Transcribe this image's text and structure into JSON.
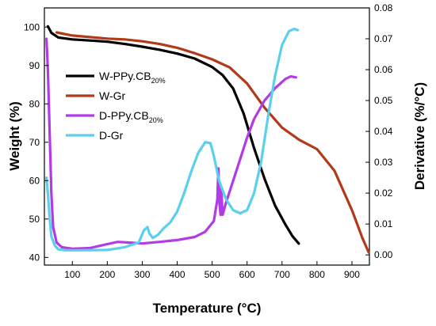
{
  "chart_data": {
    "type": "line",
    "xlabel": "Temperature (°C)",
    "ylabel_left": "Weight (%)",
    "ylabel_right": "Derivative (%/°C)",
    "xlim": [
      20,
      950
    ],
    "ylim_left": [
      38,
      105
    ],
    "ylim_right": [
      -0.0033,
      0.08
    ],
    "x_ticks": [
      "100",
      "200",
      "300",
      "400",
      "500",
      "600",
      "700",
      "800",
      "900"
    ],
    "y_left_ticks": [
      "40",
      "50",
      "60",
      "70",
      "80",
      "90",
      "100"
    ],
    "y_right_ticks": [
      "0.00",
      "0.01",
      "0.02",
      "0.03",
      "0.04",
      "0.05",
      "0.06",
      "0.07",
      "0.08"
    ],
    "grid": false,
    "legend_position": "upper-left",
    "series": [
      {
        "name": "W-PPy.CB",
        "name_sub": "20%",
        "axis": "left",
        "color": "#000000",
        "points": [
          [
            30,
            100.2
          ],
          [
            40,
            98.5
          ],
          [
            60,
            97.3
          ],
          [
            100,
            96.8
          ],
          [
            150,
            96.5
          ],
          [
            200,
            96.2
          ],
          [
            250,
            95.6
          ],
          [
            300,
            94.9
          ],
          [
            350,
            94.1
          ],
          [
            400,
            93.1
          ],
          [
            450,
            91.8
          ],
          [
            500,
            89.6
          ],
          [
            530,
            87.5
          ],
          [
            560,
            84.0
          ],
          [
            590,
            77.5
          ],
          [
            620,
            68.5
          ],
          [
            650,
            60.5
          ],
          [
            680,
            53.5
          ],
          [
            710,
            48.5
          ],
          [
            730,
            45.5
          ],
          [
            748,
            43.6
          ]
        ]
      },
      {
        "name": "W-Gr",
        "axis": "left",
        "color": "#b03a1a",
        "points": [
          [
            55,
            98.6
          ],
          [
            100,
            97.8
          ],
          [
            150,
            97.4
          ],
          [
            200,
            97.0
          ],
          [
            250,
            96.8
          ],
          [
            300,
            96.3
          ],
          [
            350,
            95.6
          ],
          [
            400,
            94.6
          ],
          [
            450,
            93.2
          ],
          [
            500,
            91.6
          ],
          [
            550,
            89.5
          ],
          [
            600,
            85.3
          ],
          [
            650,
            79.0
          ],
          [
            700,
            73.8
          ],
          [
            750,
            70.6
          ],
          [
            800,
            68.2
          ],
          [
            850,
            62.6
          ],
          [
            900,
            52.3
          ],
          [
            930,
            45.0
          ],
          [
            948,
            41.3
          ]
        ]
      },
      {
        "name": "D-PPy.CB",
        "name_sub": "20%",
        "axis": "right",
        "color": "#b23be6",
        "points": [
          [
            26,
            0.07
          ],
          [
            30,
            0.06
          ],
          [
            35,
            0.04
          ],
          [
            40,
            0.02
          ],
          [
            45,
            0.009
          ],
          [
            55,
            0.004
          ],
          [
            70,
            0.0025
          ],
          [
            100,
            0.002
          ],
          [
            150,
            0.0022
          ],
          [
            200,
            0.0035
          ],
          [
            230,
            0.0042
          ],
          [
            260,
            0.004
          ],
          [
            300,
            0.0037
          ],
          [
            350,
            0.0042
          ],
          [
            400,
            0.0048
          ],
          [
            450,
            0.0058
          ],
          [
            480,
            0.0075
          ],
          [
            505,
            0.011
          ],
          [
            515,
            0.018
          ],
          [
            518,
            0.028
          ],
          [
            520,
            0.018
          ],
          [
            524,
            0.013
          ],
          [
            526,
            0.0215
          ],
          [
            530,
            0.013
          ],
          [
            540,
            0.017
          ],
          [
            560,
            0.024
          ],
          [
            580,
            0.031
          ],
          [
            600,
            0.038
          ],
          [
            620,
            0.044
          ],
          [
            650,
            0.05
          ],
          [
            680,
            0.054
          ],
          [
            710,
            0.057
          ],
          [
            725,
            0.0578
          ],
          [
            740,
            0.0575
          ]
        ]
      },
      {
        "name": "D-Gr",
        "axis": "right",
        "color": "#5ad0ec",
        "points": [
          [
            26,
            0.025
          ],
          [
            30,
            0.02
          ],
          [
            35,
            0.012
          ],
          [
            40,
            0.006
          ],
          [
            50,
            0.003
          ],
          [
            60,
            0.0018
          ],
          [
            80,
            0.0015
          ],
          [
            120,
            0.0015
          ],
          [
            200,
            0.0016
          ],
          [
            250,
            0.0025
          ],
          [
            290,
            0.004
          ],
          [
            305,
            0.008
          ],
          [
            315,
            0.009
          ],
          [
            320,
            0.007
          ],
          [
            330,
            0.0055
          ],
          [
            345,
            0.0065
          ],
          [
            360,
            0.0085
          ],
          [
            380,
            0.0105
          ],
          [
            400,
            0.014
          ],
          [
            420,
            0.02
          ],
          [
            440,
            0.027
          ],
          [
            460,
            0.033
          ],
          [
            480,
            0.0365
          ],
          [
            495,
            0.0362
          ],
          [
            505,
            0.032
          ],
          [
            520,
            0.024
          ],
          [
            540,
            0.018
          ],
          [
            560,
            0.0145
          ],
          [
            580,
            0.0135
          ],
          [
            600,
            0.0145
          ],
          [
            620,
            0.02
          ],
          [
            640,
            0.03
          ],
          [
            660,
            0.045
          ],
          [
            680,
            0.058
          ],
          [
            700,
            0.068
          ],
          [
            720,
            0.0725
          ],
          [
            735,
            0.0732
          ],
          [
            745,
            0.0728
          ]
        ]
      }
    ]
  }
}
